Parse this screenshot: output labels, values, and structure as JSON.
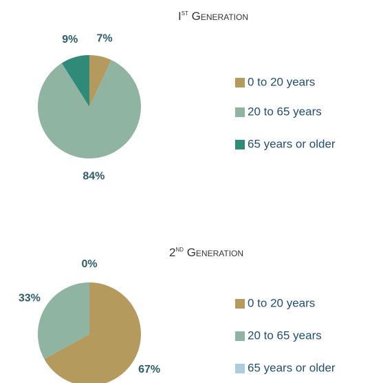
{
  "chart_data": [
    {
      "type": "pie",
      "title": [
        "I",
        "st",
        " Generation"
      ],
      "categories": [
        "0 to 20 years",
        "20 to 65 years",
        "65 years or older"
      ],
      "values": [
        7,
        84,
        9
      ],
      "value_labels": [
        "7%",
        "84%",
        "9%"
      ],
      "colors": [
        "#b59a5e",
        "#8fb4a1",
        "#2f8a78"
      ],
      "legend": "right"
    },
    {
      "type": "pie",
      "title": [
        "2",
        "nd",
        " Generation"
      ],
      "categories": [
        "0 to 20 years",
        "20 to 65 years",
        "65 years or older"
      ],
      "values": [
        67,
        33,
        0
      ],
      "value_labels": [
        "67%",
        "33%",
        "0%"
      ],
      "colors": [
        "#b59a5e",
        "#8fb4a1",
        "#a8d0dc"
      ],
      "legend": "right"
    }
  ]
}
